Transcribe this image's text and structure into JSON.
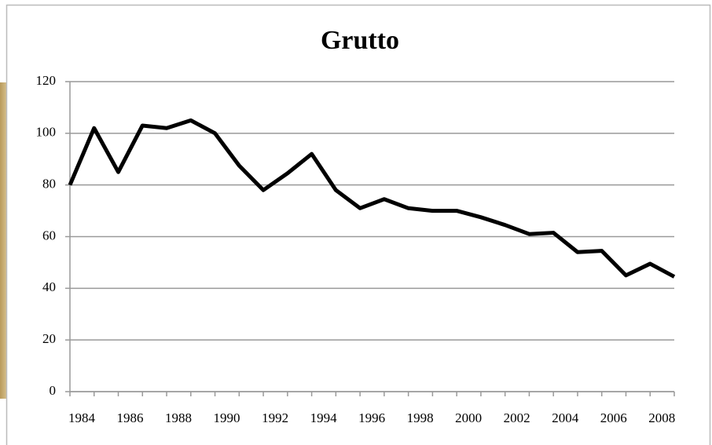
{
  "chart_data": {
    "type": "line",
    "title": "Grutto",
    "x": [
      1984,
      1985,
      1986,
      1987,
      1988,
      1989,
      1990,
      1991,
      1992,
      1993,
      1994,
      1995,
      1996,
      1997,
      1998,
      1999,
      2000,
      2001,
      2002,
      2003,
      2004,
      2005,
      2006,
      2007,
      2008,
      2009
    ],
    "series": [
      {
        "color": "#000000",
        "values": [
          80,
          102,
          85,
          103,
          102,
          105,
          100,
          87.5,
          78,
          84.5,
          92,
          78,
          71,
          74.5,
          71,
          70,
          70,
          67.5,
          64.5,
          61,
          61.5,
          54,
          54.5,
          45,
          49.5,
          44.5
        ]
      }
    ],
    "xlim": [
      1984,
      2009
    ],
    "xticks": [
      1984,
      1986,
      1988,
      1990,
      1992,
      1994,
      1996,
      1998,
      2000,
      2002,
      2004,
      2006,
      2008
    ],
    "ylim": [
      0,
      120
    ],
    "yticks": [
      0,
      20,
      40,
      60,
      80,
      100,
      120
    ],
    "grid": true
  }
}
